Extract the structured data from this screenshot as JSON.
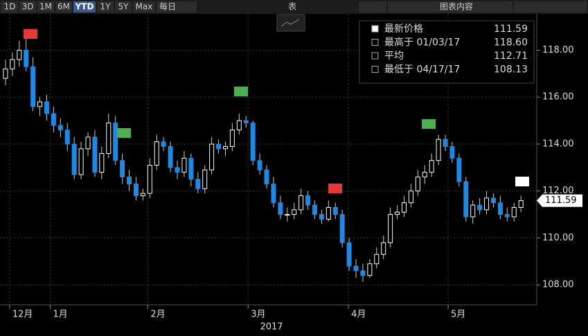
{
  "toolbar": {
    "ranges": [
      "1D",
      "3D",
      "1M",
      "6M",
      "YTD",
      "1Y",
      "5Y",
      "Max"
    ],
    "active": "YTD",
    "freq": "每日",
    "table": "表",
    "content": "图表内容"
  },
  "chart_data": {
    "type": "candlestick",
    "year": "2017",
    "open": [
      116.8,
      117.2,
      117.6,
      118.0,
      117.3,
      115.6,
      115.8,
      115.3,
      114.8,
      114.6,
      114.0,
      112.7,
      113.8,
      114.3,
      112.8,
      113.6,
      114.9,
      113.3,
      112.6,
      112.3,
      111.8,
      111.9,
      113.1,
      114.1,
      113.9,
      113.0,
      112.8,
      113.4,
      112.5,
      112.1,
      112.9,
      114.0,
      113.8,
      113.9,
      114.6,
      115.0,
      114.9,
      113.3,
      112.9,
      112.3,
      111.5,
      111.0,
      111.0,
      111.2,
      111.8,
      111.4,
      111.0,
      110.8,
      111.3,
      111.0,
      109.8,
      108.8,
      108.6,
      108.4,
      108.9,
      109.3,
      109.8,
      111.0,
      111.1,
      111.5,
      112.0,
      112.6,
      112.8,
      113.3,
      114.2,
      113.9,
      113.4,
      112.4,
      110.9,
      111.4,
      111.2,
      111.7,
      111.5,
      111.0,
      110.9,
      111.3
    ],
    "high": [
      117.6,
      117.9,
      118.4,
      118.6,
      117.7,
      116.0,
      116.1,
      115.6,
      115.1,
      114.9,
      114.3,
      114.1,
      114.5,
      114.6,
      113.9,
      115.3,
      115.2,
      113.6,
      112.9,
      112.6,
      112.1,
      113.4,
      114.4,
      114.3,
      114.1,
      113.3,
      113.7,
      113.6,
      112.8,
      113.1,
      114.3,
      114.2,
      114.1,
      114.9,
      115.3,
      115.2,
      115.0,
      113.6,
      113.1,
      112.6,
      111.8,
      111.3,
      111.5,
      112.1,
      112.0,
      111.6,
      111.2,
      111.6,
      111.5,
      111.2,
      110.0,
      109.1,
      108.9,
      109.1,
      109.6,
      110.1,
      111.3,
      111.4,
      111.8,
      112.3,
      112.9,
      113.1,
      113.6,
      114.4,
      114.4,
      114.1,
      113.6,
      112.6,
      111.6,
      111.7,
      112.0,
      111.9,
      111.8,
      111.3,
      111.5,
      111.8
    ],
    "low": [
      116.5,
      116.9,
      117.3,
      117.1,
      115.4,
      115.2,
      115.0,
      114.5,
      114.3,
      113.7,
      112.5,
      112.5,
      113.5,
      112.6,
      112.5,
      113.4,
      113.1,
      112.3,
      112.0,
      111.6,
      111.6,
      111.7,
      112.9,
      113.7,
      112.8,
      112.5,
      112.6,
      112.2,
      111.9,
      111.9,
      112.7,
      113.6,
      113.5,
      113.7,
      114.4,
      114.7,
      113.1,
      112.7,
      112.1,
      111.3,
      110.8,
      110.7,
      110.8,
      111.0,
      111.2,
      110.8,
      110.6,
      110.7,
      110.8,
      109.6,
      108.6,
      108.3,
      108.13,
      108.3,
      108.7,
      109.1,
      109.6,
      110.8,
      110.9,
      111.3,
      111.8,
      112.3,
      112.6,
      113.1,
      113.7,
      113.2,
      112.2,
      110.7,
      110.6,
      111.0,
      111.0,
      111.3,
      110.8,
      110.7,
      110.7,
      111.1
    ],
    "close": [
      117.2,
      117.6,
      118.0,
      117.3,
      115.6,
      115.8,
      115.3,
      114.8,
      114.6,
      114.0,
      112.7,
      113.8,
      114.3,
      112.8,
      113.6,
      114.9,
      113.3,
      112.6,
      112.3,
      111.8,
      111.9,
      113.1,
      114.1,
      113.9,
      113.0,
      112.8,
      113.4,
      112.5,
      112.1,
      112.9,
      114.0,
      113.8,
      113.9,
      114.6,
      115.0,
      114.9,
      113.3,
      112.9,
      112.3,
      111.5,
      111.0,
      111.0,
      111.2,
      111.8,
      111.4,
      111.0,
      110.8,
      111.3,
      111.0,
      109.8,
      108.8,
      108.6,
      108.4,
      108.9,
      109.3,
      109.8,
      111.0,
      111.1,
      111.5,
      112.0,
      112.6,
      112.8,
      113.3,
      114.2,
      113.9,
      113.4,
      112.4,
      110.9,
      111.4,
      111.2,
      111.7,
      111.5,
      111.0,
      110.9,
      111.3,
      111.59
    ],
    "xlim": [
      -0.8,
      77.3
    ],
    "xticks": [
      {
        "value": 0.6,
        "label": "12月"
      },
      {
        "value": 6.5,
        "label": "1月"
      },
      {
        "value": 20.7,
        "label": "2月"
      },
      {
        "value": 35.3,
        "label": "3月"
      },
      {
        "value": 49.9,
        "label": "4月"
      },
      {
        "value": 64.4,
        "label": "5月"
      }
    ],
    "ylim": [
      107.15,
      119.55
    ],
    "yticks": [
      {
        "value": 108,
        "label": "108.00"
      },
      {
        "value": 110,
        "label": "110.00"
      },
      {
        "value": 112,
        "label": "112.00"
      },
      {
        "value": 114,
        "label": "114.00"
      },
      {
        "value": 116,
        "label": "116.00"
      },
      {
        "value": 118,
        "label": "118.00"
      }
    ],
    "last": {
      "value": 111.59,
      "label": "111.59"
    },
    "stats": [
      {
        "name": "最新价格",
        "value": 111.59,
        "label": "111.59"
      },
      {
        "name": "最高于 01/03/17",
        "value": 118.6,
        "label": "118.60"
      },
      {
        "name": "平均",
        "value": 112.71,
        "label": "112.71"
      },
      {
        "name": "最低于 04/17/17",
        "value": 108.13,
        "label": "108.13"
      }
    ],
    "up_color": "#ffffff",
    "down_color": "#1e88e5",
    "grid": true
  }
}
